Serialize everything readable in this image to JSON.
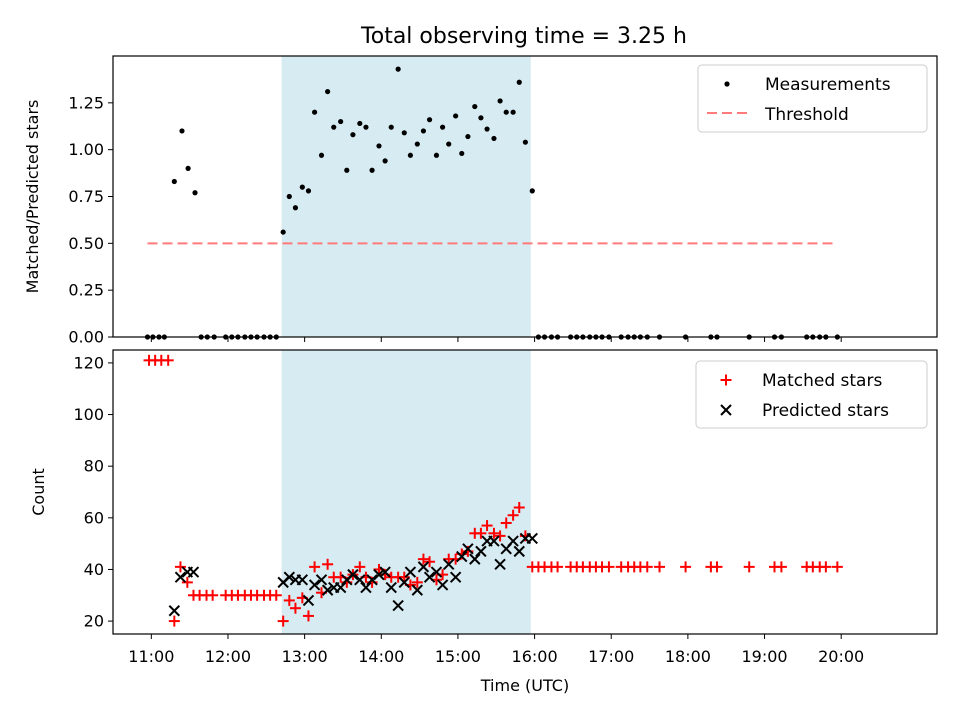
{
  "chart_data": [
    {
      "type": "scatter",
      "title": "Total observing time = 3.25 h",
      "xlabel": "",
      "ylabel": "Matched/Predicted stars",
      "xlim": [
        10.5,
        21.25
      ],
      "ylim": [
        0,
        1.5
      ],
      "y_ticks": [
        0.0,
        0.25,
        0.5,
        0.75,
        1.0,
        1.25
      ],
      "y_tick_labels": [
        "0.00",
        "0.25",
        "0.50",
        "0.75",
        "1.00",
        "1.25"
      ],
      "shaded_region": {
        "x": [
          12.7,
          15.95
        ],
        "color": "#add8e6"
      },
      "legend": {
        "position": "top-right",
        "entries": [
          "Measurements",
          "Threshold"
        ]
      },
      "series": [
        {
          "name": "Measurements",
          "color": "#000000",
          "marker": "dot",
          "points": [
            [
              10.95,
              0
            ],
            [
              11.02,
              0
            ],
            [
              11.1,
              0
            ],
            [
              11.17,
              0
            ],
            [
              11.3,
              0.83
            ],
            [
              11.4,
              1.1
            ],
            [
              11.48,
              0.9
            ],
            [
              11.57,
              0.77
            ],
            [
              11.65,
              0
            ],
            [
              11.73,
              0
            ],
            [
              11.82,
              0
            ],
            [
              11.97,
              0
            ],
            [
              12.05,
              0
            ],
            [
              12.13,
              0
            ],
            [
              12.22,
              0
            ],
            [
              12.3,
              0
            ],
            [
              12.38,
              0
            ],
            [
              12.47,
              0
            ],
            [
              12.55,
              0
            ],
            [
              12.63,
              0
            ],
            [
              12.72,
              0.56
            ],
            [
              12.8,
              0.75
            ],
            [
              12.88,
              0.69
            ],
            [
              12.97,
              0.8
            ],
            [
              13.05,
              0.78
            ],
            [
              13.13,
              1.2
            ],
            [
              13.22,
              0.97
            ],
            [
              13.3,
              1.31
            ],
            [
              13.38,
              1.12
            ],
            [
              13.47,
              1.15
            ],
            [
              13.55,
              0.89
            ],
            [
              13.63,
              1.08
            ],
            [
              13.72,
              1.14
            ],
            [
              13.8,
              1.12
            ],
            [
              13.88,
              0.89
            ],
            [
              13.97,
              1.02
            ],
            [
              14.05,
              0.94
            ],
            [
              14.13,
              1.12
            ],
            [
              14.22,
              1.43
            ],
            [
              14.3,
              1.09
            ],
            [
              14.38,
              0.97
            ],
            [
              14.47,
              1.03
            ],
            [
              14.55,
              1.1
            ],
            [
              14.63,
              1.16
            ],
            [
              14.72,
              0.97
            ],
            [
              14.8,
              1.12
            ],
            [
              14.88,
              1.03
            ],
            [
              14.97,
              1.18
            ],
            [
              15.05,
              0.98
            ],
            [
              15.13,
              1.07
            ],
            [
              15.22,
              1.23
            ],
            [
              15.3,
              1.17
            ],
            [
              15.38,
              1.11
            ],
            [
              15.47,
              1.06
            ],
            [
              15.55,
              1.26
            ],
            [
              15.63,
              1.2
            ],
            [
              15.72,
              1.2
            ],
            [
              15.8,
              1.36
            ],
            [
              15.88,
              1.04
            ],
            [
              15.97,
              0.78
            ],
            [
              16.05,
              0
            ],
            [
              16.13,
              0
            ],
            [
              16.22,
              0
            ],
            [
              16.3,
              0
            ],
            [
              16.47,
              0
            ],
            [
              16.55,
              0
            ],
            [
              16.63,
              0
            ],
            [
              16.72,
              0
            ],
            [
              16.8,
              0
            ],
            [
              16.88,
              0
            ],
            [
              16.97,
              0
            ],
            [
              17.13,
              0
            ],
            [
              17.22,
              0
            ],
            [
              17.3,
              0
            ],
            [
              17.38,
              0
            ],
            [
              17.47,
              0
            ],
            [
              17.63,
              0
            ],
            [
              17.97,
              0
            ],
            [
              18.3,
              0
            ],
            [
              18.38,
              0
            ],
            [
              18.8,
              0
            ],
            [
              19.13,
              0
            ],
            [
              19.22,
              0
            ],
            [
              19.55,
              0
            ],
            [
              19.63,
              0
            ],
            [
              19.72,
              0
            ],
            [
              19.8,
              0
            ],
            [
              19.95,
              0
            ]
          ]
        },
        {
          "name": "Threshold",
          "color": "#ff7b7b",
          "style": "dashed",
          "points": [
            [
              10.95,
              0.5
            ],
            [
              19.95,
              0.5
            ]
          ]
        }
      ]
    },
    {
      "type": "scatter",
      "title": "",
      "xlabel": "Time (UTC)",
      "ylabel": "Count",
      "xlim": [
        10.5,
        21.25
      ],
      "ylim": [
        15,
        125
      ],
      "x_ticks": [
        11,
        12,
        13,
        14,
        15,
        16,
        17,
        18,
        19,
        20
      ],
      "x_tick_labels": [
        "11:00",
        "12:00",
        "13:00",
        "14:00",
        "15:00",
        "16:00",
        "17:00",
        "18:00",
        "19:00",
        "20:00"
      ],
      "y_ticks": [
        20,
        40,
        60,
        80,
        100,
        120
      ],
      "y_tick_labels": [
        "20",
        "40",
        "60",
        "80",
        "100",
        "120"
      ],
      "shaded_region": {
        "x": [
          12.7,
          15.95
        ],
        "color": "#add8e6"
      },
      "legend": {
        "position": "top-right",
        "entries": [
          "Matched stars",
          "Predicted stars"
        ]
      },
      "series": [
        {
          "name": "Matched stars",
          "color": "#ff0000",
          "marker": "plus",
          "points": [
            [
              10.97,
              121
            ],
            [
              11.05,
              121
            ],
            [
              11.13,
              121
            ],
            [
              11.22,
              121
            ],
            [
              11.3,
              20
            ],
            [
              11.38,
              41
            ],
            [
              11.47,
              35
            ],
            [
              11.55,
              30
            ],
            [
              11.63,
              30
            ],
            [
              11.72,
              30
            ],
            [
              11.8,
              30
            ],
            [
              11.97,
              30
            ],
            [
              12.05,
              30
            ],
            [
              12.13,
              30
            ],
            [
              12.22,
              30
            ],
            [
              12.3,
              30
            ],
            [
              12.38,
              30
            ],
            [
              12.47,
              30
            ],
            [
              12.55,
              30
            ],
            [
              12.63,
              30
            ],
            [
              12.72,
              20
            ],
            [
              12.8,
              28
            ],
            [
              12.88,
              25
            ],
            [
              12.97,
              29
            ],
            [
              13.05,
              22
            ],
            [
              13.13,
              41
            ],
            [
              13.22,
              31
            ],
            [
              13.3,
              42
            ],
            [
              13.38,
              37
            ],
            [
              13.47,
              37
            ],
            [
              13.55,
              35
            ],
            [
              13.63,
              38
            ],
            [
              13.72,
              41
            ],
            [
              13.8,
              37
            ],
            [
              13.88,
              35
            ],
            [
              13.97,
              40
            ],
            [
              14.05,
              38
            ],
            [
              14.13,
              37
            ],
            [
              14.22,
              37
            ],
            [
              14.3,
              37
            ],
            [
              14.38,
              34
            ],
            [
              14.47,
              35
            ],
            [
              14.55,
              44
            ],
            [
              14.63,
              43
            ],
            [
              14.72,
              36
            ],
            [
              14.8,
              38
            ],
            [
              14.88,
              44
            ],
            [
              14.97,
              44
            ],
            [
              15.05,
              46
            ],
            [
              15.13,
              47
            ],
            [
              15.22,
              54
            ],
            [
              15.3,
              54
            ],
            [
              15.38,
              57
            ],
            [
              15.47,
              54
            ],
            [
              15.55,
              53
            ],
            [
              15.63,
              58
            ],
            [
              15.72,
              61
            ],
            [
              15.8,
              64
            ],
            [
              15.88,
              53
            ],
            [
              15.97,
              41
            ],
            [
              16.05,
              41
            ],
            [
              16.13,
              41
            ],
            [
              16.22,
              41
            ],
            [
              16.3,
              41
            ],
            [
              16.47,
              41
            ],
            [
              16.55,
              41
            ],
            [
              16.63,
              41
            ],
            [
              16.72,
              41
            ],
            [
              16.8,
              41
            ],
            [
              16.88,
              41
            ],
            [
              16.97,
              41
            ],
            [
              17.13,
              41
            ],
            [
              17.22,
              41
            ],
            [
              17.3,
              41
            ],
            [
              17.38,
              41
            ],
            [
              17.47,
              41
            ],
            [
              17.63,
              41
            ],
            [
              17.97,
              41
            ],
            [
              18.3,
              41
            ],
            [
              18.38,
              41
            ],
            [
              18.8,
              41
            ],
            [
              19.13,
              41
            ],
            [
              19.22,
              41
            ],
            [
              19.55,
              41
            ],
            [
              19.63,
              41
            ],
            [
              19.72,
              41
            ],
            [
              19.8,
              41
            ],
            [
              19.95,
              41
            ]
          ]
        },
        {
          "name": "Predicted stars",
          "color": "#000000",
          "marker": "x",
          "points": [
            [
              11.3,
              24
            ],
            [
              11.38,
              37
            ],
            [
              11.47,
              39
            ],
            [
              11.55,
              39
            ],
            [
              12.72,
              35
            ],
            [
              12.8,
              37
            ],
            [
              12.88,
              36
            ],
            [
              12.97,
              36
            ],
            [
              13.05,
              28
            ],
            [
              13.13,
              34
            ],
            [
              13.22,
              36
            ],
            [
              13.3,
              32
            ],
            [
              13.38,
              33
            ],
            [
              13.47,
              33
            ],
            [
              13.55,
              36
            ],
            [
              13.63,
              38
            ],
            [
              13.72,
              36
            ],
            [
              13.8,
              33
            ],
            [
              13.88,
              36
            ],
            [
              13.97,
              38
            ],
            [
              14.05,
              39
            ],
            [
              14.13,
              33
            ],
            [
              14.22,
              26
            ],
            [
              14.3,
              35
            ],
            [
              14.38,
              39
            ],
            [
              14.47,
              32
            ],
            [
              14.55,
              41
            ],
            [
              14.63,
              37
            ],
            [
              14.72,
              39
            ],
            [
              14.8,
              34
            ],
            [
              14.88,
              42
            ],
            [
              14.97,
              37
            ],
            [
              15.05,
              45
            ],
            [
              15.13,
              48
            ],
            [
              15.22,
              44
            ],
            [
              15.3,
              47
            ],
            [
              15.38,
              51
            ],
            [
              15.47,
              51
            ],
            [
              15.55,
              42
            ],
            [
              15.63,
              48
            ],
            [
              15.72,
              51
            ],
            [
              15.8,
              47
            ],
            [
              15.88,
              52
            ],
            [
              15.97,
              52
            ]
          ]
        }
      ]
    }
  ]
}
